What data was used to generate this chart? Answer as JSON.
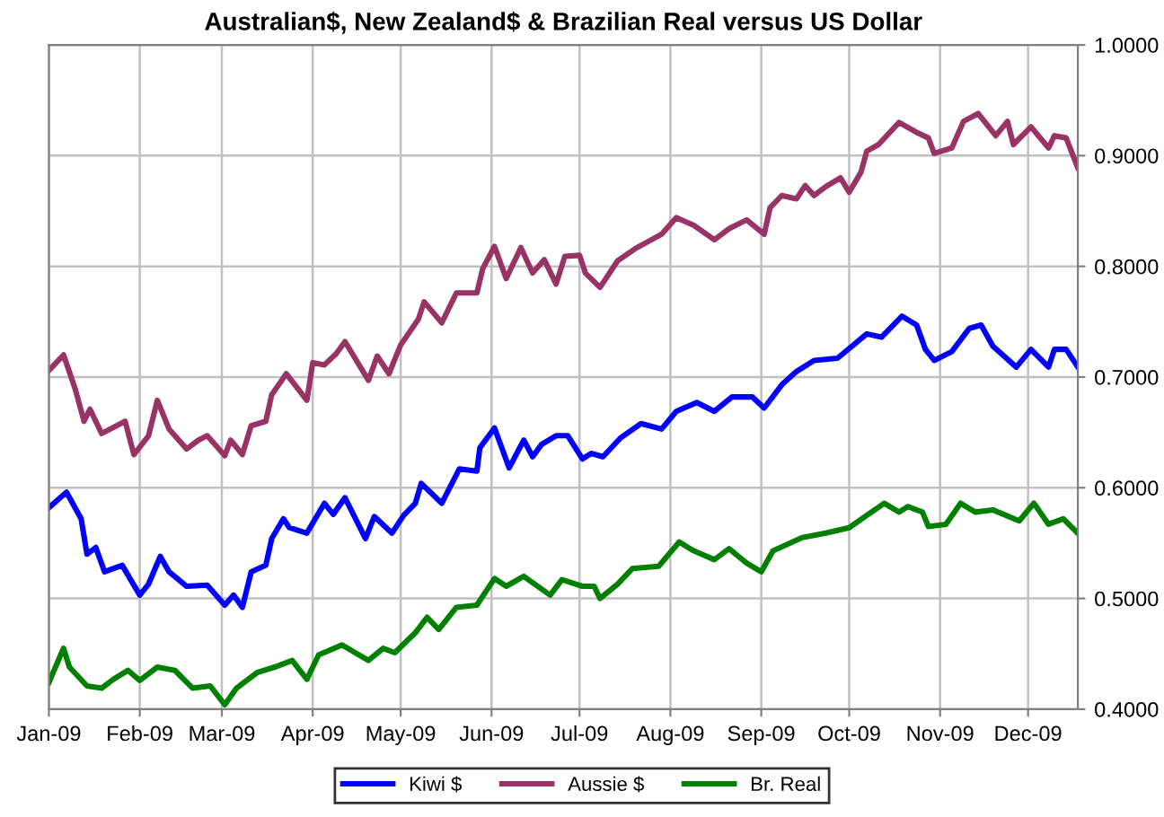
{
  "chart_data": {
    "type": "line",
    "title": "Australian$, New Zealand$ & Brazilian Real versus US Dollar",
    "series": [
      {
        "name": "Kiwi $",
        "color": "#0000ff",
        "x": [
          "2009-01-01",
          "2009-01-07",
          "2009-01-12",
          "2009-01-14",
          "2009-01-17",
          "2009-01-20",
          "2009-01-26",
          "2009-02-01",
          "2009-02-04",
          "2009-02-08",
          "2009-02-11",
          "2009-02-17",
          "2009-02-24",
          "2009-03-02",
          "2009-03-05",
          "2009-03-08",
          "2009-03-11",
          "2009-03-16",
          "2009-03-18",
          "2009-03-22",
          "2009-03-24",
          "2009-03-30",
          "2009-04-05",
          "2009-04-08",
          "2009-04-12",
          "2009-04-19",
          "2009-04-22",
          "2009-04-28",
          "2009-05-02",
          "2009-05-06",
          "2009-05-08",
          "2009-05-15",
          "2009-05-21",
          "2009-05-27",
          "2009-05-28",
          "2009-06-02",
          "2009-06-07",
          "2009-06-12",
          "2009-06-15",
          "2009-06-18",
          "2009-06-23",
          "2009-06-27",
          "2009-07-02",
          "2009-07-05",
          "2009-07-09",
          "2009-07-15",
          "2009-07-22",
          "2009-07-29",
          "2009-08-03",
          "2009-08-10",
          "2009-08-16",
          "2009-08-22",
          "2009-08-29",
          "2009-09-02",
          "2009-09-08",
          "2009-09-13",
          "2009-09-19",
          "2009-09-27",
          "2009-10-07",
          "2009-10-12",
          "2009-10-19",
          "2009-10-24",
          "2009-10-27",
          "2009-10-30",
          "2009-11-05",
          "2009-11-11",
          "2009-11-15",
          "2009-11-19",
          "2009-11-27",
          "2009-12-02",
          "2009-12-08",
          "2009-12-10",
          "2009-12-14",
          "2009-12-18"
        ],
        "values": [
          0.582,
          0.596,
          0.572,
          0.54,
          0.546,
          0.524,
          0.53,
          0.503,
          0.513,
          0.538,
          0.524,
          0.511,
          0.512,
          0.494,
          0.503,
          0.492,
          0.524,
          0.53,
          0.554,
          0.572,
          0.564,
          0.559,
          0.586,
          0.576,
          0.591,
          0.554,
          0.574,
          0.559,
          0.575,
          0.586,
          0.604,
          0.586,
          0.617,
          0.615,
          0.636,
          0.654,
          0.618,
          0.643,
          0.628,
          0.639,
          0.647,
          0.647,
          0.626,
          0.631,
          0.628,
          0.645,
          0.658,
          0.653,
          0.669,
          0.677,
          0.669,
          0.682,
          0.682,
          0.672,
          0.693,
          0.705,
          0.715,
          0.717,
          0.739,
          0.736,
          0.755,
          0.747,
          0.725,
          0.715,
          0.723,
          0.744,
          0.747,
          0.728,
          0.709,
          0.725,
          0.709,
          0.725,
          0.725,
          0.709
        ]
      },
      {
        "name": "Aussie $",
        "color": "#993366",
        "x": [
          "2009-01-01",
          "2009-01-06",
          "2009-01-10",
          "2009-01-13",
          "2009-01-15",
          "2009-01-19",
          "2009-01-27",
          "2009-01-30",
          "2009-02-04",
          "2009-02-07",
          "2009-02-11",
          "2009-02-17",
          "2009-02-21",
          "2009-02-24",
          "2009-03-02",
          "2009-03-04",
          "2009-03-08",
          "2009-03-11",
          "2009-03-16",
          "2009-03-18",
          "2009-03-23",
          "2009-03-30",
          "2009-04-01",
          "2009-04-05",
          "2009-04-09",
          "2009-04-12",
          "2009-04-20",
          "2009-04-23",
          "2009-04-27",
          "2009-05-01",
          "2009-05-07",
          "2009-05-09",
          "2009-05-15",
          "2009-05-20",
          "2009-05-27",
          "2009-05-29",
          "2009-06-02",
          "2009-06-06",
          "2009-06-11",
          "2009-06-15",
          "2009-06-19",
          "2009-06-23",
          "2009-06-26",
          "2009-07-01",
          "2009-07-03",
          "2009-07-08",
          "2009-07-14",
          "2009-07-20",
          "2009-07-29",
          "2009-08-03",
          "2009-08-09",
          "2009-08-16",
          "2009-08-21",
          "2009-08-27",
          "2009-09-02",
          "2009-09-04",
          "2009-09-08",
          "2009-09-13",
          "2009-09-16",
          "2009-09-19",
          "2009-09-23",
          "2009-09-28",
          "2009-10-01",
          "2009-10-05",
          "2009-10-07",
          "2009-10-11",
          "2009-10-18",
          "2009-10-24",
          "2009-10-28",
          "2009-10-30",
          "2009-11-05",
          "2009-11-09",
          "2009-11-14",
          "2009-11-20",
          "2009-11-24",
          "2009-11-26",
          "2009-12-02",
          "2009-12-08",
          "2009-12-10",
          "2009-12-14",
          "2009-12-18"
        ],
        "values": [
          0.706,
          0.72,
          0.689,
          0.66,
          0.671,
          0.649,
          0.66,
          0.63,
          0.647,
          0.679,
          0.653,
          0.635,
          0.643,
          0.647,
          0.629,
          0.643,
          0.63,
          0.656,
          0.66,
          0.684,
          0.703,
          0.679,
          0.713,
          0.711,
          0.721,
          0.732,
          0.697,
          0.719,
          0.703,
          0.729,
          0.752,
          0.768,
          0.749,
          0.776,
          0.776,
          0.798,
          0.818,
          0.789,
          0.817,
          0.794,
          0.806,
          0.784,
          0.809,
          0.81,
          0.794,
          0.781,
          0.805,
          0.816,
          0.829,
          0.844,
          0.837,
          0.824,
          0.834,
          0.842,
          0.829,
          0.853,
          0.864,
          0.861,
          0.873,
          0.864,
          0.872,
          0.88,
          0.867,
          0.885,
          0.904,
          0.91,
          0.93,
          0.921,
          0.916,
          0.902,
          0.907,
          0.931,
          0.938,
          0.918,
          0.931,
          0.91,
          0.926,
          0.907,
          0.918,
          0.916,
          0.889
        ]
      },
      {
        "name": "Br. Real",
        "color": "#008000",
        "x": [
          "2009-01-01",
          "2009-01-06",
          "2009-01-08",
          "2009-01-14",
          "2009-01-19",
          "2009-01-23",
          "2009-01-28",
          "2009-02-01",
          "2009-02-07",
          "2009-02-13",
          "2009-02-19",
          "2009-02-25",
          "2009-03-02",
          "2009-03-06",
          "2009-03-13",
          "2009-03-19",
          "2009-03-25",
          "2009-03-30",
          "2009-04-03",
          "2009-04-11",
          "2009-04-20",
          "2009-04-25",
          "2009-04-29",
          "2009-05-06",
          "2009-05-10",
          "2009-05-14",
          "2009-05-20",
          "2009-05-27",
          "2009-06-02",
          "2009-06-06",
          "2009-06-12",
          "2009-06-21",
          "2009-06-25",
          "2009-07-02",
          "2009-07-06",
          "2009-07-08",
          "2009-07-14",
          "2009-07-19",
          "2009-07-28",
          "2009-08-04",
          "2009-08-09",
          "2009-08-16",
          "2009-08-21",
          "2009-08-27",
          "2009-09-01",
          "2009-09-05",
          "2009-09-15",
          "2009-09-23",
          "2009-10-01",
          "2009-10-07",
          "2009-10-13",
          "2009-10-18",
          "2009-10-21",
          "2009-10-26",
          "2009-10-28",
          "2009-11-03",
          "2009-11-08",
          "2009-11-13",
          "2009-11-19",
          "2009-11-28",
          "2009-12-03",
          "2009-12-08",
          "2009-12-13",
          "2009-12-18"
        ],
        "values": [
          0.424,
          0.455,
          0.438,
          0.421,
          0.419,
          0.427,
          0.435,
          0.426,
          0.438,
          0.435,
          0.419,
          0.421,
          0.404,
          0.419,
          0.433,
          0.438,
          0.444,
          0.427,
          0.449,
          0.458,
          0.444,
          0.455,
          0.451,
          0.469,
          0.483,
          0.472,
          0.492,
          0.494,
          0.518,
          0.511,
          0.52,
          0.503,
          0.517,
          0.511,
          0.511,
          0.5,
          0.513,
          0.527,
          0.529,
          0.551,
          0.543,
          0.535,
          0.545,
          0.532,
          0.524,
          0.543,
          0.555,
          0.559,
          0.564,
          0.575,
          0.586,
          0.578,
          0.583,
          0.578,
          0.565,
          0.567,
          0.586,
          0.578,
          0.58,
          0.57,
          0.586,
          0.567,
          0.572,
          0.559
        ]
      }
    ],
    "xlim": [
      "2009-01-01",
      "2009-12-18"
    ],
    "xticks": [
      {
        "value": "2009-01-01",
        "label": "Jan-09"
      },
      {
        "value": "2009-02-01",
        "label": "Feb-09"
      },
      {
        "value": "2009-03-01",
        "label": "Mar-09"
      },
      {
        "value": "2009-04-01",
        "label": "Apr-09"
      },
      {
        "value": "2009-05-01",
        "label": "May-09"
      },
      {
        "value": "2009-06-01",
        "label": "Jun-09"
      },
      {
        "value": "2009-07-01",
        "label": "Jul-09"
      },
      {
        "value": "2009-08-01",
        "label": "Aug-09"
      },
      {
        "value": "2009-09-01",
        "label": "Sep-09"
      },
      {
        "value": "2009-10-01",
        "label": "Oct-09"
      },
      {
        "value": "2009-11-01",
        "label": "Nov-09"
      },
      {
        "value": "2009-12-01",
        "label": "Dec-09"
      }
    ],
    "ylim": [
      0.4,
      1.0
    ],
    "yticks": [
      {
        "value": 0.4,
        "label": "0.4000"
      },
      {
        "value": 0.5,
        "label": "0.5000"
      },
      {
        "value": 0.6,
        "label": "0.6000"
      },
      {
        "value": 0.7,
        "label": "0.7000"
      },
      {
        "value": 0.8,
        "label": "0.8000"
      },
      {
        "value": 0.9,
        "label": "0.9000"
      },
      {
        "value": 1.0,
        "label": "1.0000"
      }
    ],
    "grid": true,
    "legend": "bottom",
    "marker": "none",
    "line_style": "solid"
  }
}
